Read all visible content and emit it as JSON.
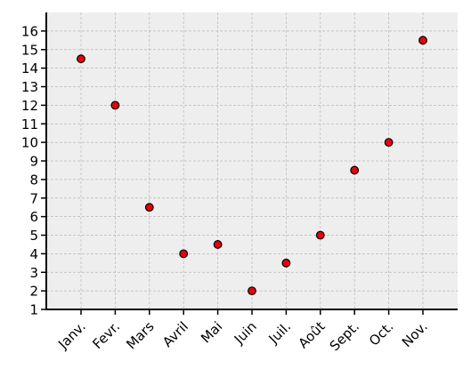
{
  "chart_data": {
    "type": "scatter",
    "title": "",
    "xlabel": "",
    "ylabel": "",
    "categories": [
      "Janv.",
      "Fevr.",
      "Mars",
      "Avril",
      "Mai",
      "Juin",
      "Juil.",
      "Août",
      "Sept.",
      "Oct.",
      "Nov."
    ],
    "values": [
      14.5,
      12,
      6.5,
      4,
      4.5,
      2,
      3.5,
      5,
      8.5,
      10,
      15.5
    ],
    "ylim": [
      1,
      17
    ],
    "yticks": [
      1,
      2,
      3,
      4,
      5,
      6,
      7,
      8,
      9,
      10,
      11,
      12,
      13,
      14,
      15,
      16
    ],
    "grid": true,
    "legend": "none",
    "colors": {
      "point_fill": "#e8000b",
      "point_edge": "#000000",
      "plot_background": "#eeeeee",
      "grid": "#b8b8b8"
    }
  }
}
